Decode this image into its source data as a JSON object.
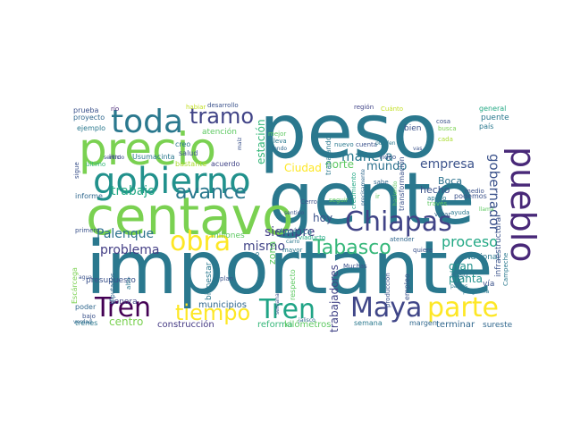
{
  "words": [
    {
      "text": "peso",
      "color": "#2a788e"
    },
    {
      "text": "gente",
      "color": "#2a788e"
    },
    {
      "text": "importante",
      "color": "#2a788e"
    },
    {
      "text": "centavo",
      "color": "#7ad151"
    },
    {
      "text": "precio",
      "color": "#7ad151"
    },
    {
      "text": "gobierno",
      "color": "#21918c"
    },
    {
      "text": "toda",
      "color": "#2a788e"
    },
    {
      "text": "tramo",
      "color": "#414487"
    },
    {
      "text": "pueblo",
      "color": "#482878"
    },
    {
      "text": "Chiapas",
      "color": "#414487"
    },
    {
      "text": "Tabasco",
      "color": "#35b779"
    },
    {
      "text": "obra",
      "color": "#fde725"
    },
    {
      "text": "avance",
      "color": "#2a788e"
    },
    {
      "text": "Tren",
      "color": "#440154"
    },
    {
      "text": "Tren",
      "color": "#20a486"
    },
    {
      "text": "Maya",
      "color": "#404688"
    },
    {
      "text": "parte",
      "color": "#fde725"
    },
    {
      "text": "tiempo",
      "color": "#fde725"
    },
    {
      "text": "proceso",
      "color": "#22a884"
    },
    {
      "text": "gobernador",
      "color": "#3b528b"
    },
    {
      "text": "manera",
      "color": "#2a788e"
    },
    {
      "text": "trabajo",
      "color": "#22a884"
    },
    {
      "text": "empresa",
      "color": "#3b528b"
    },
    {
      "text": "mundo",
      "color": "#2c728e"
    },
    {
      "text": "norte",
      "color": "#5ec962"
    },
    {
      "text": "Ciudad",
      "color": "#fde725"
    },
    {
      "text": "Palenque",
      "color": "#2c728e"
    },
    {
      "text": "problema",
      "color": "#433e85"
    },
    {
      "text": "siempre",
      "color": "#433e85"
    },
    {
      "text": "mismo",
      "color": "#414487"
    },
    {
      "text": "estación",
      "color": "#35b779"
    },
    {
      "text": "hoy",
      "color": "#3b528b"
    },
    {
      "text": "Boca",
      "color": "#2c728e"
    },
    {
      "text": "hecho",
      "color": "#3b528b"
    },
    {
      "text": "gran",
      "color": "#21918c"
    },
    {
      "text": "planta",
      "color": "#21918c"
    },
    {
      "text": "trabajadores",
      "color": "#414487"
    },
    {
      "text": "centro",
      "color": "#7ad151"
    },
    {
      "text": "municipios",
      "color": "#31688e"
    },
    {
      "text": "bienestar",
      "color": "#2a788e"
    },
    {
      "text": "construcción",
      "color": "#443983"
    },
    {
      "text": "reforma",
      "color": "#35b779"
    },
    {
      "text": "kilómetros",
      "color": "#5ec962"
    },
    {
      "text": "semana",
      "color": "#2a788e"
    },
    {
      "text": "terminar",
      "color": "#31688e"
    },
    {
      "text": "sureste",
      "color": "#31688e"
    },
    {
      "text": "vía",
      "color": "#3b528b"
    },
    {
      "text": "Nacional",
      "color": "#2a788e"
    },
    {
      "text": "millones",
      "color": "#5ec962"
    },
    {
      "text": "América",
      "color": "#2a788e"
    },
    {
      "text": "zona",
      "color": "#5ec962"
    },
    {
      "text": "Sonora",
      "color": "#414487"
    },
    {
      "text": "presupuesto",
      "color": "#3b528b"
    },
    {
      "text": "Escárcega",
      "color": "#7ad151"
    },
    {
      "text": "primero",
      "color": "#3b528b"
    },
    {
      "text": "trenes",
      "color": "#2a788e"
    },
    {
      "text": "poder",
      "color": "#31688e"
    },
    {
      "text": "informe",
      "color": "#31688e"
    },
    {
      "text": "prueba",
      "color": "#3b528b"
    },
    {
      "text": "proyecto",
      "color": "#31688e"
    },
    {
      "text": "ejemplo",
      "color": "#2a788e"
    },
    {
      "text": "río",
      "color": "#482878"
    },
    {
      "text": "desarrollo",
      "color": "#3b528b"
    },
    {
      "text": "habiar",
      "color": "#c2df23"
    },
    {
      "text": "atención",
      "color": "#5ec962"
    },
    {
      "text": "creo",
      "color": "#2a788e"
    },
    {
      "text": "salud",
      "color": "#3b528b"
    },
    {
      "text": "bastante",
      "color": "#aadc32"
    },
    {
      "text": "acuerdo",
      "color": "#414487"
    },
    {
      "text": "último",
      "color": "#35b779"
    },
    {
      "text": "sigue",
      "color": "#3b528b"
    },
    {
      "text": "litro",
      "color": "#414487"
    },
    {
      "text": "región",
      "color": "#414487"
    },
    {
      "text": "Cuánto",
      "color": "#c2df23"
    },
    {
      "text": "general",
      "color": "#22a884"
    },
    {
      "text": "puente",
      "color": "#2a788e"
    },
    {
      "text": "país",
      "color": "#2a788e"
    },
    {
      "text": "cosa",
      "color": "#3b528b"
    },
    {
      "text": "busca",
      "color": "#7ad151"
    },
    {
      "text": "bien",
      "color": "#3b528b"
    },
    {
      "text": "cada",
      "color": "#aadc32"
    },
    {
      "text": "mejor",
      "color": "#5ec962"
    },
    {
      "text": "lleva",
      "color": "#2a788e"
    },
    {
      "text": "nuevo",
      "color": "#2a788e"
    },
    {
      "text": "cuenta",
      "color": "#3b528b"
    },
    {
      "text": "video",
      "color": "#3b528b"
    },
    {
      "text": "sabe",
      "color": "#31688e"
    },
    {
      "text": "ir",
      "color": "#5ec962"
    },
    {
      "text": "podemos",
      "color": "#3b528b"
    },
    {
      "text": "apoyo",
      "color": "#2a788e"
    },
    {
      "text": "Cerro",
      "color": "#3b528b"
    },
    {
      "text": "viaducto",
      "color": "#22a884"
    },
    {
      "text": "mayor",
      "color": "#2a788e"
    },
    {
      "text": "sólo",
      "color": "#2a788e"
    },
    {
      "text": "Muchas",
      "color": "#3b528b"
    },
    {
      "text": "atender",
      "color": "#31688e"
    },
    {
      "text": "quiere",
      "color": "#3b528b"
    },
    {
      "text": "abajo",
      "color": "#2a788e"
    },
    {
      "text": "medio",
      "color": "#3b528b"
    },
    {
      "text": "ayuda",
      "color": "#2a788e"
    },
    {
      "text": "votar",
      "color": "#31688e"
    },
    {
      "text": "través",
      "color": "#5ec962"
    },
    {
      "text": "plan",
      "color": "#3b528b"
    },
    {
      "text": "margen",
      "color": "#31688e"
    },
    {
      "text": "Campeche",
      "color": "#2a788e"
    },
    {
      "text": "servicio",
      "color": "#3b528b"
    },
    {
      "text": "Usumacinta",
      "color": "#2a788e"
    },
    {
      "text": "infraestructura",
      "color": "#3b528b"
    },
    {
      "text": "trabajando",
      "color": "#2a788e"
    },
    {
      "text": "crecimiento",
      "color": "#22a884"
    },
    {
      "text": "transformación",
      "color": "#3b528b"
    },
    {
      "text": "empleo",
      "color": "#3b528b"
    },
    {
      "text": "producción",
      "color": "#3b528b"
    },
    {
      "text": "alto",
      "color": "#2a788e"
    },
    {
      "text": "bajo",
      "color": "#3b528b"
    },
    {
      "text": "agua",
      "color": "#3b528b"
    },
    {
      "text": "diputados",
      "color": "#31688e"
    },
    {
      "text": "respecto",
      "color": "#5ec962"
    },
    {
      "text": "precisamente",
      "color": "#31688e"
    },
    {
      "text": "seguir",
      "color": "#5ec962"
    },
    {
      "text": "pueden",
      "color": "#2a788e"
    },
    {
      "text": "programa",
      "color": "#2a788e"
    },
    {
      "text": "países",
      "color": "#2a788e"
    },
    {
      "text": "carro",
      "color": "#2a788e"
    },
    {
      "text": "sentido",
      "color": "#3b528b"
    },
    {
      "text": "haciendo",
      "color": "#5ec962"
    },
    {
      "text": "fondo",
      "color": "#31688e"
    },
    {
      "text": "maíz",
      "color": "#3b528b"
    },
    {
      "text": "llama",
      "color": "#5ec962"
    },
    {
      "text": "semana",
      "color": "#3b528b"
    },
    {
      "text": "jalisco",
      "color": "#31688e"
    },
    {
      "text": "verdad",
      "color": "#31688e"
    },
    {
      "text": "vas",
      "color": "#3b528b"
    }
  ]
}
